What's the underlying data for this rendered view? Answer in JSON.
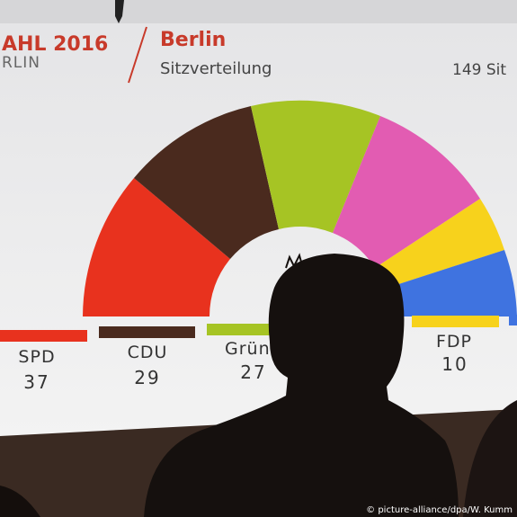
{
  "header": {
    "title": "AHL 2016",
    "subtitle": "RLIN",
    "region": "Berlin",
    "chart_title": "Sitzverteilung",
    "total": "149 Sit"
  },
  "parties": [
    {
      "name": "SPD",
      "seats": 37
    },
    {
      "name": "CDU",
      "seats": 29
    },
    {
      "name": "Grün",
      "seats": 27
    },
    {
      "name": "FDP",
      "seats": 10
    }
  ],
  "credit": "© picture-alliance/dpa/W. Kumm"
}
